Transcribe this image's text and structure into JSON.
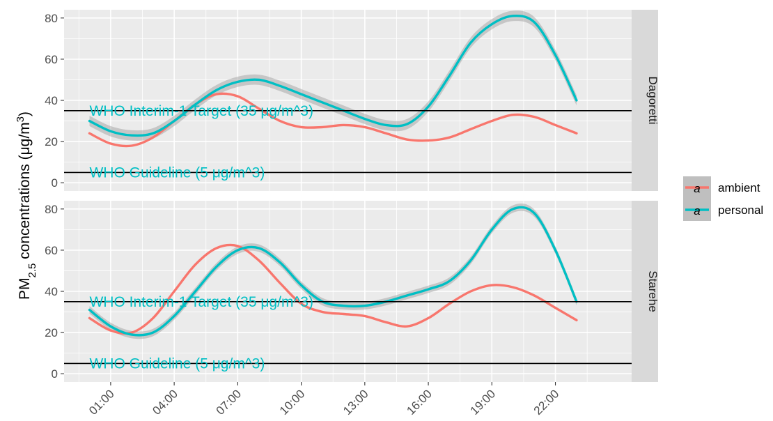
{
  "chart_data": {
    "type": "line",
    "ylabel": "PM₂.₅ concentrations (μg/m³)",
    "ylabel_main": "PM",
    "ylabel_sub": "2.5",
    "ylabel_rest": " concentrations (μg/m",
    "ylabel_sup": "3",
    "ylabel_close": ")",
    "xlabel": "",
    "x_ticks": [
      "01:00",
      "04:00",
      "07:00",
      "10:00",
      "13:00",
      "16:00",
      "19:00",
      "22:00"
    ],
    "x_tick_values": [
      1,
      4,
      7,
      10,
      13,
      16,
      19,
      22
    ],
    "xlim": [
      -1.2,
      25.6
    ],
    "ylim": [
      -4,
      84
    ],
    "y_ticks": [
      0,
      20,
      40,
      60,
      80
    ],
    "grid": true,
    "legend_position": "right",
    "series_colors": {
      "ambient": "#F8766D",
      "personal": "#00BFC4"
    },
    "ribbon_color": "#999999",
    "reference_lines": [
      {
        "y": 35,
        "label": "WHO Interim-1 Target (35 μg/m^3)",
        "label_x": 0.0,
        "label_y": 35
      },
      {
        "y": 5,
        "label": "WHO Guideline (5 μg/m^3)",
        "label_x": 0.0,
        "label_y": 5
      }
    ],
    "legend": [
      {
        "name": "ambient",
        "key_glyph": "a",
        "color": "#F8766D"
      },
      {
        "name": "personal",
        "key_glyph": "a",
        "color": "#00BFC4"
      }
    ],
    "panels": [
      {
        "strip": "Dagoretti",
        "series": [
          {
            "name": "ambient",
            "x": [
              0,
              1,
              2,
              3,
              4,
              5,
              6,
              7,
              8,
              9,
              10,
              11,
              12,
              13,
              14,
              15,
              16,
              17,
              18,
              19,
              20,
              21,
              22,
              23
            ],
            "y": [
              24,
              19,
              18,
              22,
              30,
              38,
              43,
              42,
              36,
              30,
              27,
              27,
              28,
              27,
              24,
              21,
              20.5,
              22,
              26,
              30,
              33,
              32,
              28,
              24
            ],
            "ribbon": 0
          },
          {
            "name": "personal",
            "x": [
              0,
              1,
              2,
              3,
              4,
              5,
              6,
              7,
              8,
              9,
              10,
              11,
              12,
              13,
              14,
              15,
              16,
              17,
              18,
              19,
              20,
              21,
              22,
              23
            ],
            "y": [
              30,
              25,
              23,
              24,
              30,
              38,
              45,
              49,
              50,
              47,
              43,
              39,
              35,
              31,
              28,
              28.5,
              37,
              52,
              68,
              77,
              81,
              78,
              62,
              40
            ],
            "ribbon": 2.5
          }
        ]
      },
      {
        "strip": "Starehe",
        "series": [
          {
            "name": "ambient",
            "x": [
              0,
              1,
              2,
              3,
              4,
              5,
              6,
              7,
              8,
              9,
              10,
              11,
              12,
              13,
              14,
              15,
              16,
              17,
              18,
              19,
              20,
              21,
              22,
              23
            ],
            "y": [
              27,
              21,
              20,
              27,
              40,
              53,
              61,
              62,
              55,
              44,
              34,
              30,
              29,
              28,
              25,
              23,
              27,
              34,
              40,
              43,
              42,
              38,
              32,
              26
            ],
            "ribbon": 0
          },
          {
            "name": "personal",
            "x": [
              0,
              1,
              2,
              3,
              4,
              5,
              6,
              7,
              8,
              9,
              10,
              11,
              12,
              13,
              14,
              15,
              16,
              17,
              18,
              19,
              20,
              21,
              22,
              23
            ],
            "y": [
              31,
              23,
              19,
              20,
              28,
              40,
              52,
              60,
              61,
              54,
              43,
              35,
              33,
              33,
              35,
              38,
              41,
              45,
              55,
              70,
              80,
              78,
              60,
              35
            ],
            "ribbon": 1.8
          }
        ]
      }
    ]
  }
}
